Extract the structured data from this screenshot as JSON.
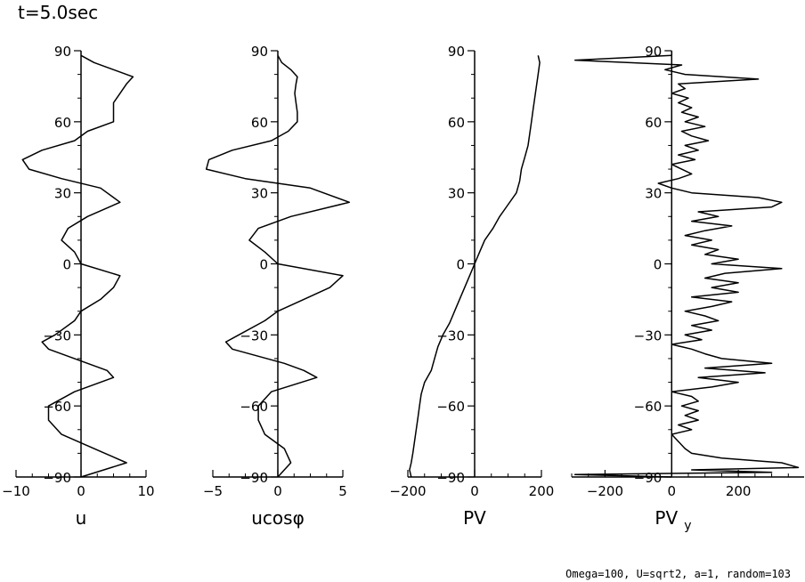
{
  "header": {
    "time_label": "t=5.0sec"
  },
  "footer": {
    "params_label": "Omega=100, U=sqrt2, a=1, random=103"
  },
  "chart_data": [
    {
      "type": "line",
      "title": "",
      "xlabel": "u",
      "ylabel": "",
      "xlim": [
        -10,
        10
      ],
      "ylim": [
        -90,
        90
      ],
      "x_ticks": [
        -10,
        0,
        10
      ],
      "x_tick_labels": [
        "−10",
        "0",
        "10"
      ],
      "y_ticks": [
        90,
        60,
        30,
        0,
        -30,
        -60,
        -90
      ],
      "y_tick_labels": [
        "90",
        "60",
        "30",
        "0",
        "−30",
        "−60",
        "−90"
      ],
      "y": [
        -90,
        -84,
        -78,
        -72,
        -66,
        -60,
        -54,
        -48,
        -45,
        -42,
        -36,
        -33,
        -30,
        -24,
        -20,
        -15,
        -10,
        -5,
        0,
        5,
        10,
        15,
        20,
        26,
        32,
        36,
        40,
        44,
        48,
        52,
        56,
        60,
        64,
        68,
        72,
        76,
        79,
        82,
        85,
        88
      ],
      "x": [
        0,
        7,
        2,
        -3,
        -5,
        -5,
        -1,
        5,
        4,
        1,
        -5,
        -6,
        -4,
        -1,
        0,
        3,
        5,
        6,
        0,
        -1,
        -3,
        -2,
        1,
        6,
        3,
        -3,
        -8,
        -9,
        -6,
        -1,
        1,
        5,
        5,
        5,
        6,
        7,
        8,
        5,
        2,
        0
      ]
    },
    {
      "type": "line",
      "title": "",
      "xlabel": "ucosφ",
      "ylabel": "",
      "xlim": [
        -5,
        5
      ],
      "ylim": [
        -90,
        90
      ],
      "x_ticks": [
        -5,
        0,
        5
      ],
      "x_tick_labels": [
        "−5",
        "0",
        "5"
      ],
      "y_ticks": [
        90,
        60,
        30,
        0,
        -30,
        -60,
        -90
      ],
      "y_tick_labels": [
        "90",
        "60",
        "30",
        "0",
        "−30",
        "−60",
        "−90"
      ],
      "y": [
        -90,
        -84,
        -78,
        -72,
        -66,
        -60,
        -54,
        -48,
        -45,
        -42,
        -36,
        -33,
        -30,
        -24,
        -20,
        -15,
        -10,
        -5,
        0,
        5,
        10,
        15,
        20,
        26,
        32,
        36,
        40,
        44,
        48,
        52,
        56,
        60,
        64,
        68,
        72,
        76,
        79,
        82,
        85,
        88
      ],
      "x": [
        0,
        1,
        0.5,
        -1,
        -1.5,
        -1.5,
        -0.5,
        3,
        2,
        0.5,
        -3.5,
        -4,
        -3,
        -1,
        0,
        2,
        4,
        5,
        0,
        -1,
        -2.2,
        -1.5,
        1,
        5.5,
        2.5,
        -2.5,
        -5.5,
        -5.3,
        -3.5,
        -0.5,
        0.8,
        1.5,
        1.5,
        1.4,
        1.3,
        1.4,
        1.5,
        1.0,
        0.3,
        0
      ]
    },
    {
      "type": "line",
      "title": "",
      "xlabel": "PV",
      "ylabel": "",
      "xlim": [
        -200,
        200
      ],
      "ylim": [
        -90,
        90
      ],
      "x_ticks": [
        -200,
        0,
        200
      ],
      "x_tick_labels": [
        "−200",
        "0",
        "200"
      ],
      "y_ticks": [
        90,
        60,
        30,
        0,
        -30,
        -60,
        -90
      ],
      "y_tick_labels": [
        "90",
        "60",
        "30",
        "0",
        "−30",
        "−60",
        "−90"
      ],
      "y": [
        -90,
        -87,
        -84,
        -80,
        -75,
        -70,
        -65,
        -60,
        -55,
        -50,
        -45,
        -40,
        -35,
        -30,
        -25,
        -20,
        -15,
        -10,
        -5,
        0,
        5,
        10,
        15,
        20,
        25,
        30,
        35,
        40,
        45,
        50,
        55,
        60,
        65,
        70,
        75,
        80,
        85,
        88
      ],
      "x": [
        -190,
        -195,
        -190,
        -185,
        -180,
        -175,
        -170,
        -165,
        -160,
        -150,
        -130,
        -120,
        -110,
        -95,
        -75,
        -60,
        -45,
        -30,
        -15,
        0,
        15,
        30,
        55,
        75,
        100,
        125,
        135,
        140,
        150,
        160,
        165,
        170,
        175,
        180,
        185,
        190,
        195,
        190
      ]
    },
    {
      "type": "line",
      "title": "",
      "xlabel": "PVy",
      "xlabel_main": "PV",
      "xlabel_sub": "y",
      "ylabel": "",
      "xlim": [
        -300,
        400
      ],
      "ylim": [
        -90,
        90
      ],
      "x_ticks": [
        -200,
        0,
        200
      ],
      "x_tick_labels": [
        "−200",
        "0",
        "200"
      ],
      "y_ticks": [
        90,
        60,
        30,
        0,
        -30,
        -60,
        -90
      ],
      "y_tick_labels": [
        "90",
        "60",
        "30",
        "0",
        "−30",
        "−60",
        "−90"
      ],
      "y": [
        -90,
        -89,
        -88,
        -87,
        -86,
        -84,
        -82,
        -80,
        -78,
        -75,
        -72,
        -70,
        -68,
        -66,
        -64,
        -62,
        -60,
        -58,
        -56,
        -54,
        -52,
        -50,
        -48,
        -46,
        -44,
        -42,
        -40,
        -38,
        -36,
        -34,
        -32,
        -30,
        -28,
        -26,
        -24,
        -22,
        -20,
        -18,
        -16,
        -14,
        -12,
        -10,
        -8,
        -6,
        -4,
        -2,
        0,
        2,
        4,
        6,
        8,
        10,
        12,
        14,
        16,
        18,
        20,
        22,
        24,
        26,
        28,
        30,
        32,
        34,
        36,
        38,
        40,
        42,
        44,
        46,
        48,
        50,
        52,
        54,
        56,
        58,
        60,
        62,
        64,
        66,
        68,
        70,
        72,
        74,
        76,
        78,
        80,
        82,
        84,
        86,
        88,
        90
      ],
      "x": [
        0,
        -290,
        300,
        60,
        380,
        330,
        150,
        60,
        40,
        20,
        0,
        60,
        20,
        80,
        40,
        80,
        30,
        80,
        60,
        0,
        120,
        200,
        80,
        280,
        100,
        300,
        150,
        100,
        60,
        0,
        90,
        40,
        120,
        60,
        140,
        100,
        40,
        120,
        180,
        60,
        200,
        120,
        200,
        100,
        160,
        330,
        120,
        200,
        100,
        140,
        60,
        120,
        40,
        100,
        180,
        60,
        140,
        80,
        300,
        330,
        260,
        60,
        0,
        -40,
        20,
        60,
        30,
        0,
        70,
        20,
        80,
        40,
        110,
        60,
        30,
        100,
        40,
        80,
        30,
        60,
        20,
        50,
        0,
        40,
        20,
        260,
        40,
        -20,
        30,
        -290,
        0,
        0
      ]
    }
  ]
}
